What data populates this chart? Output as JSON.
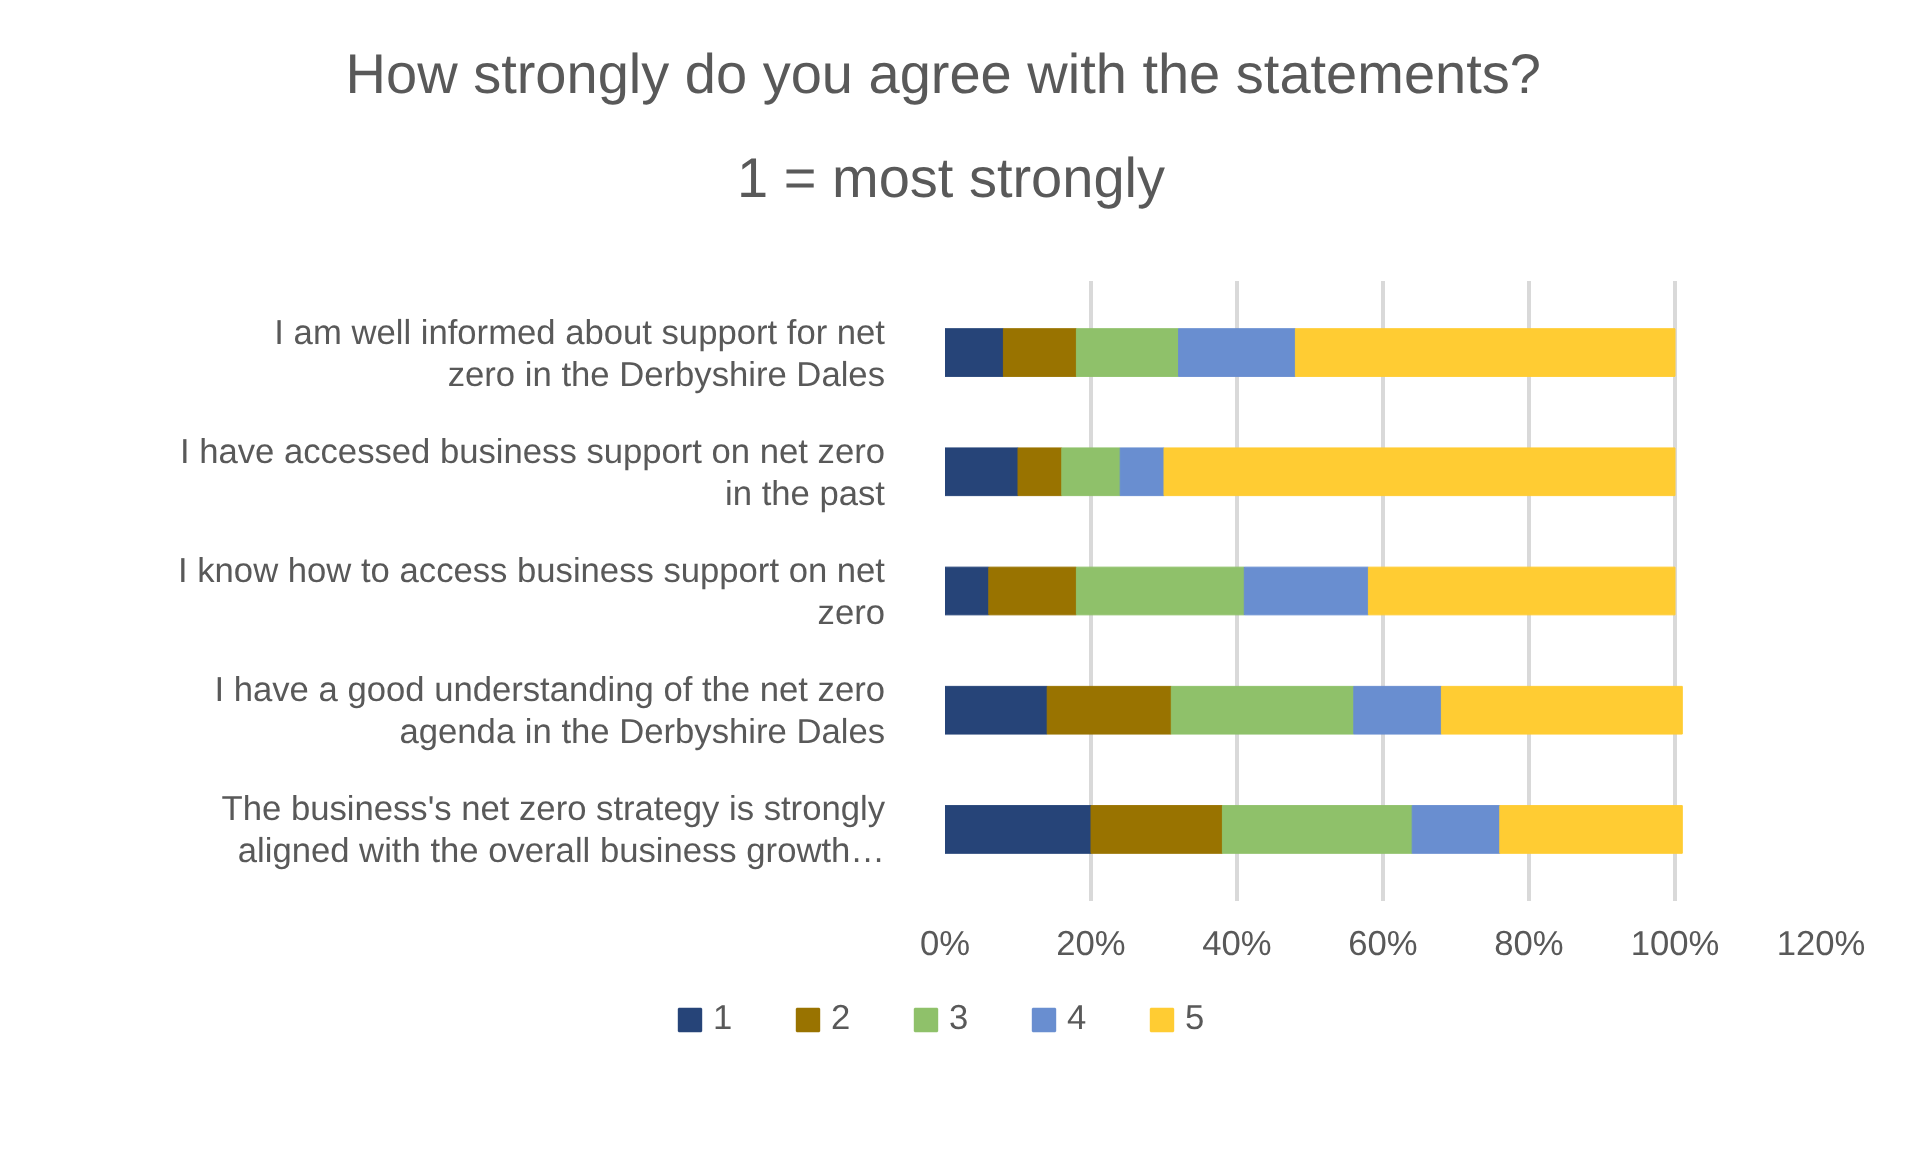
{
  "chart_data": {
    "type": "bar",
    "orientation": "horizontal",
    "stacked": true,
    "title": "How strongly do  you agree with the statements?",
    "subtitle": "1 = most strongly",
    "categories": [
      "I am well informed about support for net zero in the Derbyshire Dales",
      "I have accessed business support on net zero in the past",
      "I know how to access business support on net zero",
      "I have a good understanding of the net zero agenda in the Derbyshire Dales",
      "The business's net zero strategy is strongly aligned with the overall business growth…"
    ],
    "series": [
      {
        "name": "1",
        "color": "#264478",
        "values": [
          8,
          10,
          6,
          14,
          20
        ]
      },
      {
        "name": "2",
        "color": "#997300",
        "values": [
          10,
          6,
          12,
          17,
          18
        ]
      },
      {
        "name": "3",
        "color": "#8fc16a",
        "values": [
          14,
          8,
          23,
          25,
          26
        ]
      },
      {
        "name": "4",
        "color": "#698ed0",
        "values": [
          16,
          6,
          17,
          12,
          12
        ]
      },
      {
        "name": "5",
        "color": "#ffcc33",
        "values": [
          52,
          70,
          42,
          33,
          25
        ]
      }
    ],
    "xlim": [
      0,
      120
    ],
    "xticks": [
      {
        "value": 0,
        "label": "0%"
      },
      {
        "value": 20,
        "label": "20%"
      },
      {
        "value": 40,
        "label": "40%"
      },
      {
        "value": 60,
        "label": "60%"
      },
      {
        "value": 80,
        "label": "80%"
      },
      {
        "value": 100,
        "label": "100%"
      },
      {
        "value": 120,
        "label": "120%"
      }
    ],
    "grid": "x",
    "legend": "bottom"
  }
}
